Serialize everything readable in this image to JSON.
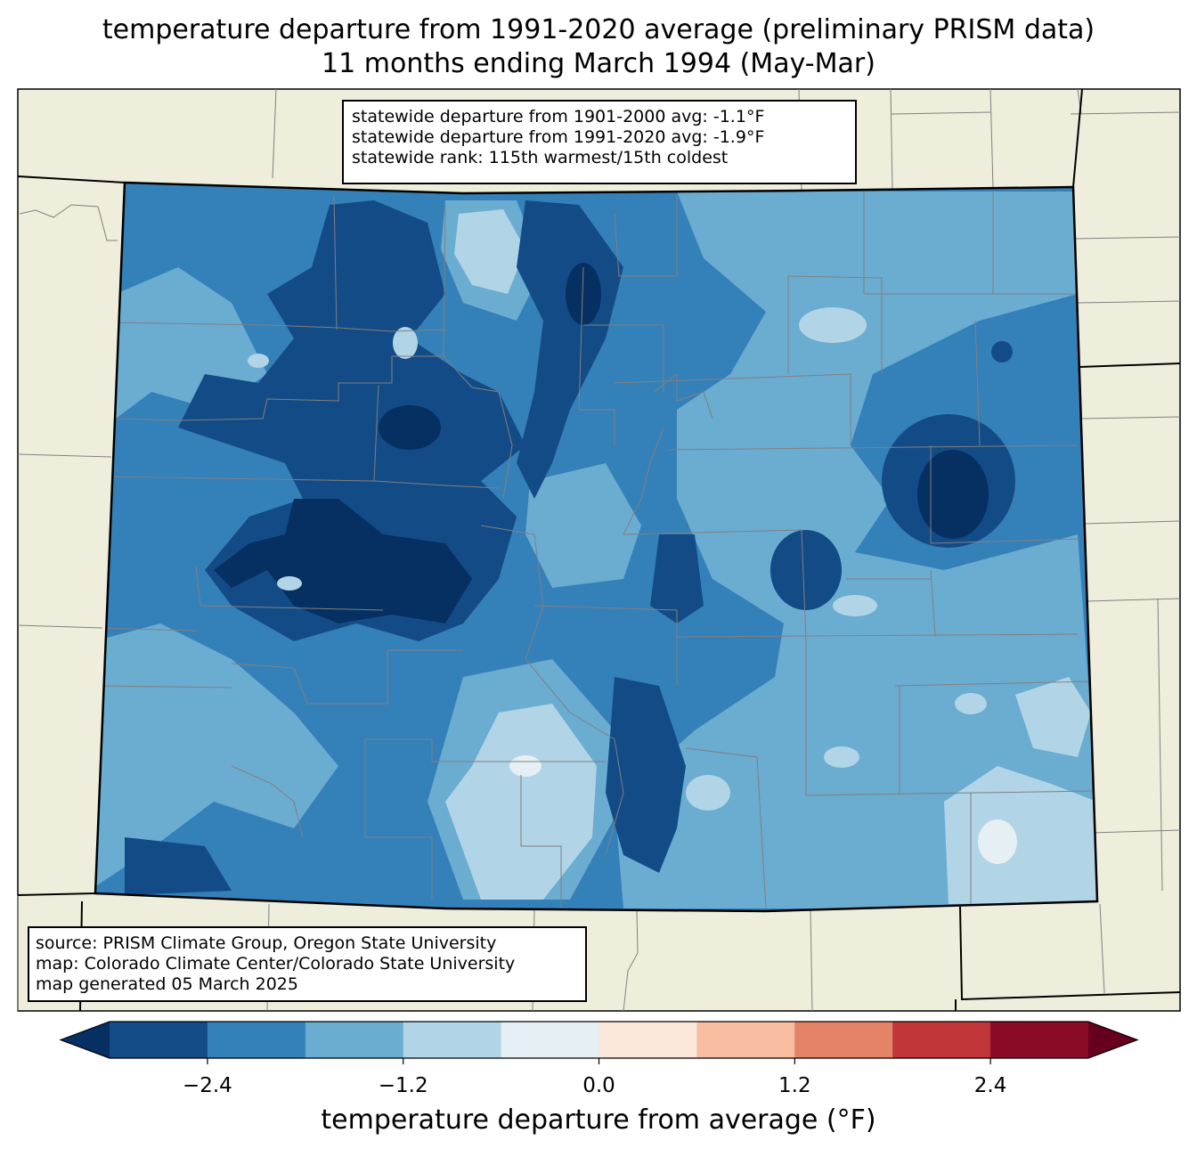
{
  "title": {
    "line1": "temperature departure from 1991-2020 average (preliminary PRISM data)",
    "line2": "11 months ending March 1994 (May-Mar)"
  },
  "stats": {
    "line1": "statewide departure from 1901-2000 avg: -1.1°F",
    "line2": "statewide departure from 1991-2020 avg: -1.9°F",
    "line3": "statewide rank: 115th warmest/15th coldest"
  },
  "credits": {
    "line1": "source: PRISM Climate Group, Oregon State University",
    "line2": "map: Colorado Climate Center/Colorado State University",
    "line3": "map generated 05 March 2025"
  },
  "colorbar": {
    "label": "temperature departure from average (°F)",
    "ticks": [
      "−2.4",
      "−1.2",
      "0.0",
      "1.2",
      "2.4"
    ],
    "tick_values": [
      -2.4,
      -1.2,
      0.0,
      1.2,
      2.4
    ],
    "range": [
      -3.0,
      3.0
    ],
    "step": 0.6,
    "under_color": "#053061",
    "over_color": "#67001f",
    "colors": [
      "#134b87",
      "#3480b9",
      "#6bacd1",
      "#b1d5e7",
      "#e6eff4",
      "#fbe6da",
      "#f9bda1",
      "#e58368",
      "#c13639",
      "#8a0b25"
    ]
  },
  "map_colors": {
    "background": "#efeedc",
    "state_border": "#000000",
    "county_line": "#808080"
  }
}
